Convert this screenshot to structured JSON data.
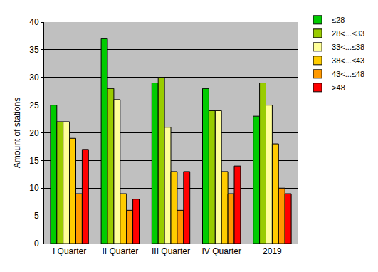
{
  "chart_data": {
    "type": "bar",
    "y_label": "Amount of stations",
    "categories": [
      "I Quarter",
      "II Quarter",
      "III Quarter",
      "IV Quarter",
      "2019"
    ],
    "series": [
      {
        "name": "≤28",
        "color": "#00cc00",
        "values": [
          25,
          37,
          29,
          28,
          23
        ]
      },
      {
        "name": "28<...≤33",
        "color": "#99cc00",
        "values": [
          22,
          28,
          30,
          24,
          29
        ]
      },
      {
        "name": "33<...≤38",
        "color": "#ffff99",
        "values": [
          22,
          26,
          21,
          24,
          25
        ]
      },
      {
        "name": "38<...≤43",
        "color": "#ffcc00",
        "values": [
          19,
          9,
          13,
          13,
          18
        ]
      },
      {
        "name": "43<...≤48",
        "color": "#ff9900",
        "values": [
          9,
          6,
          6,
          9,
          10
        ]
      },
      {
        "name": ">48",
        "color": "#ff0000",
        "values": [
          17,
          8,
          13,
          14,
          9
        ]
      }
    ],
    "ylim": [
      0,
      40
    ],
    "yticks": [
      0,
      5,
      10,
      15,
      20,
      25,
      30,
      35,
      40
    ],
    "grid": true,
    "legend": "top right"
  }
}
